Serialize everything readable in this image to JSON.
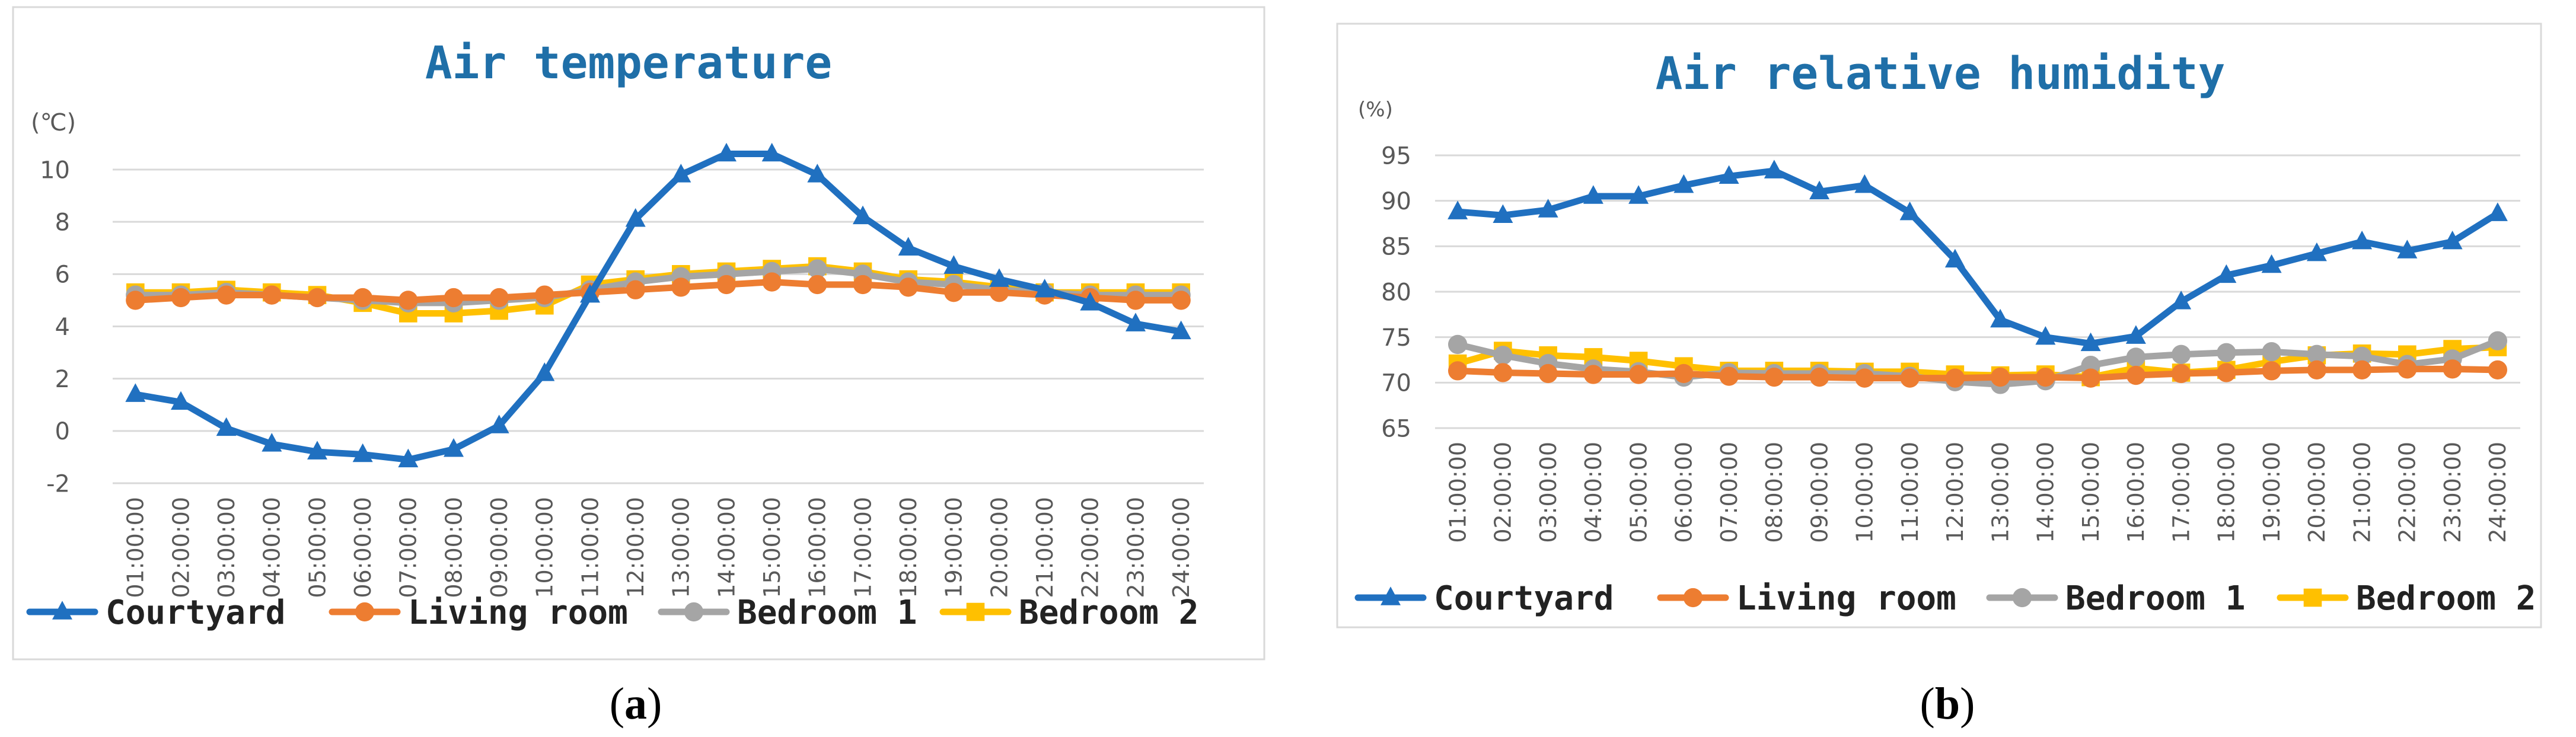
{
  "chart_data": [
    {
      "id": "a",
      "type": "line",
      "title": "Air temperature",
      "unit_label": "(℃)",
      "caption": {
        "open": "(",
        "letter": "a",
        "close": ")"
      },
      "xlabel": "",
      "ylabel": "(℃)",
      "ylim": [
        -2,
        10
      ],
      "yticks": [
        -2,
        0,
        2,
        4,
        6,
        8,
        10
      ],
      "grid": true,
      "legend_position": "bottom",
      "categories": [
        "01:00:00",
        "02:00:00",
        "03:00:00",
        "04:00:00",
        "05:00:00",
        "06:00:00",
        "07:00:00",
        "08:00:00",
        "09:00:00",
        "10:00:00",
        "11:00:00",
        "12:00:00",
        "13:00:00",
        "14:00:00",
        "15:00:00",
        "16:00:00",
        "17:00:00",
        "18:00:00",
        "19:00:00",
        "20:00:00",
        "21:00:00",
        "22:00:00",
        "23:00:00",
        "24:00:00"
      ],
      "series": [
        {
          "name": "Courtyard",
          "color": "#2070c0",
          "marker": "triangle",
          "values": [
            1.4,
            1.1,
            0.1,
            -0.5,
            -0.8,
            -0.9,
            -1.1,
            -0.7,
            0.2,
            2.2,
            5.2,
            8.1,
            9.8,
            10.6,
            10.6,
            9.8,
            8.2,
            7.0,
            6.3,
            5.8,
            5.4,
            4.9,
            4.1,
            3.8
          ]
        },
        {
          "name": "Living room",
          "color": "#ed7d31",
          "marker": "circle",
          "values": [
            5.0,
            5.1,
            5.2,
            5.2,
            5.1,
            5.1,
            5.0,
            5.1,
            5.1,
            5.2,
            5.3,
            5.4,
            5.5,
            5.6,
            5.7,
            5.6,
            5.6,
            5.5,
            5.3,
            5.3,
            5.2,
            5.1,
            5.0,
            5.0
          ]
        },
        {
          "name": "Bedroom 1",
          "color": "#a5a5a5",
          "marker": "circle",
          "values": [
            5.2,
            5.2,
            5.3,
            5.2,
            5.1,
            5.0,
            4.9,
            4.9,
            5.0,
            5.1,
            5.4,
            5.7,
            5.9,
            6.0,
            6.1,
            6.2,
            6.0,
            5.7,
            5.6,
            5.4,
            5.3,
            5.2,
            5.2,
            5.2
          ]
        },
        {
          "name": "Bedroom 2",
          "color": "#ffc000",
          "marker": "square",
          "values": [
            5.3,
            5.3,
            5.4,
            5.3,
            5.2,
            4.9,
            4.5,
            4.5,
            4.6,
            4.8,
            5.6,
            5.8,
            6.0,
            6.1,
            6.2,
            6.3,
            6.1,
            5.8,
            5.7,
            5.5,
            5.3,
            5.3,
            5.3,
            5.3
          ]
        }
      ]
    },
    {
      "id": "b",
      "type": "line",
      "title": "Air relative humidity",
      "unit_label": "(%)",
      "caption": {
        "open": "(",
        "letter": "b",
        "close": ")"
      },
      "xlabel": "",
      "ylabel": "(%)",
      "ylim": [
        65,
        95
      ],
      "yticks": [
        65,
        70,
        75,
        80,
        85,
        90,
        95
      ],
      "grid": true,
      "legend_position": "bottom",
      "categories": [
        "01:00:00",
        "02:00:00",
        "03:00:00",
        "04:00:00",
        "05:00:00",
        "06:00:00",
        "07:00:00",
        "08:00:00",
        "09:00:00",
        "10:00:00",
        "11:00:00",
        "12:00:00",
        "13:00:00",
        "14:00:00",
        "15:00:00",
        "16:00:00",
        "17:00:00",
        "18:00:00",
        "19:00:00",
        "20:00:00",
        "21:00:00",
        "22:00:00",
        "23:00:00",
        "24:00:00"
      ],
      "series": [
        {
          "name": "Courtyard",
          "color": "#2070c0",
          "marker": "triangle",
          "values": [
            88.8,
            88.4,
            89.0,
            90.5,
            90.5,
            91.7,
            92.7,
            93.3,
            91.0,
            91.7,
            88.7,
            83.5,
            76.9,
            75.0,
            74.3,
            75.1,
            78.9,
            81.8,
            82.9,
            84.2,
            85.5,
            84.5,
            85.5,
            88.6
          ]
        },
        {
          "name": "Living room",
          "color": "#ed7d31",
          "marker": "circle",
          "values": [
            71.3,
            71.1,
            71.0,
            70.9,
            70.9,
            71.0,
            70.7,
            70.6,
            70.6,
            70.5,
            70.5,
            70.5,
            70.6,
            70.6,
            70.5,
            70.8,
            71.0,
            71.1,
            71.3,
            71.4,
            71.4,
            71.5,
            71.5,
            71.4
          ]
        },
        {
          "name": "Bedroom 1",
          "color": "#a5a5a5",
          "marker": "circle",
          "values": [
            74.2,
            73.0,
            72.1,
            71.5,
            71.2,
            70.6,
            71.1,
            71.0,
            71.0,
            71.0,
            70.7,
            70.1,
            69.8,
            70.2,
            71.9,
            72.8,
            73.1,
            73.3,
            73.4,
            73.1,
            72.9,
            72.0,
            72.6,
            74.6
          ]
        },
        {
          "name": "Bedroom 2",
          "color": "#ffc000",
          "marker": "square",
          "values": [
            72.1,
            73.5,
            73.0,
            72.8,
            72.4,
            71.8,
            71.3,
            71.3,
            71.3,
            71.2,
            71.2,
            70.9,
            70.8,
            70.9,
            70.6,
            71.6,
            71.1,
            71.4,
            72.3,
            73.0,
            73.2,
            73.1,
            73.7,
            73.9
          ]
        }
      ]
    }
  ]
}
